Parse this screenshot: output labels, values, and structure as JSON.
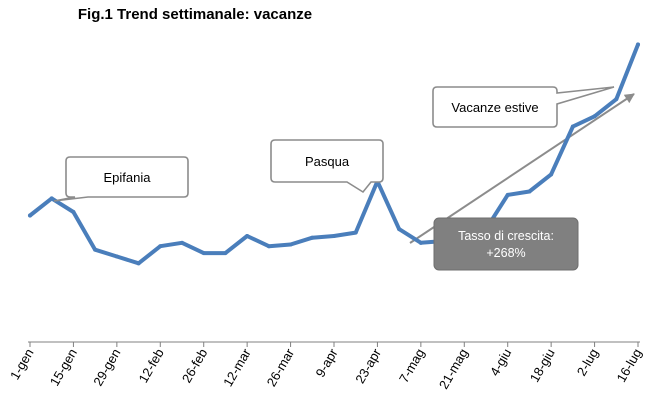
{
  "chart_data": {
    "type": "line",
    "title": "Fig.1 Trend settimanale: vacanze",
    "xlabel": "",
    "ylabel": "",
    "ylim": [
      0,
      100
    ],
    "tick_labels": [
      "1-gen",
      "15-gen",
      "29-gen",
      "12-feb",
      "26-feb",
      "12-mar",
      "26-mar",
      "9-apr",
      "23-apr",
      "7-mag",
      "21-mag",
      "4-giu",
      "18-giu",
      "2-lug",
      "16-lug"
    ],
    "series": [
      {
        "values": [
          37,
          42,
          38,
          27,
          25,
          23,
          28,
          29,
          26,
          26,
          31,
          28,
          28.5,
          30.5,
          31,
          32,
          47,
          33,
          29,
          29.5,
          31,
          33,
          43,
          44,
          49,
          63,
          66,
          71,
          87
        ],
        "color": "#4a7ebb"
      }
    ],
    "annotations": [
      {
        "text": "Epifania"
      },
      {
        "text": "Pasqua"
      },
      {
        "text": "Vacanze estive"
      },
      {
        "text": "Tasso di crescita:\n+268%"
      }
    ],
    "grid": false,
    "legend": "none"
  }
}
